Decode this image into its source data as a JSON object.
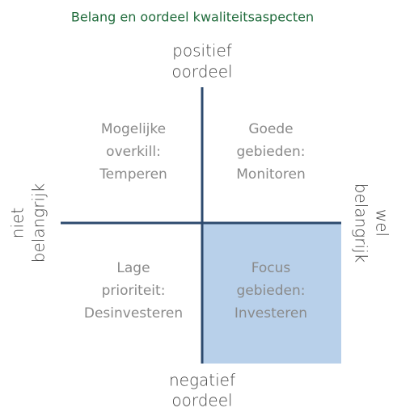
{
  "title": "Belang en oordeel kwaliteitsaspecten",
  "axes": {
    "top": [
      "positief",
      "oordeel"
    ],
    "bottom": [
      "negatief",
      "oordeel"
    ],
    "left": [
      "niet",
      "belangrijk"
    ],
    "right": [
      "wel",
      "belangrijk"
    ]
  },
  "quadrants": {
    "top_left": [
      "Mogelijke",
      "overkill:",
      "Temperen"
    ],
    "top_right": [
      "Goede",
      "gebieden:",
      "Monitoren"
    ],
    "bottom_left": [
      "Lage",
      "prioriteit:",
      "Desinvesteren"
    ],
    "bottom_right": [
      "Focus",
      "gebieden:",
      "Investeren"
    ]
  }
}
